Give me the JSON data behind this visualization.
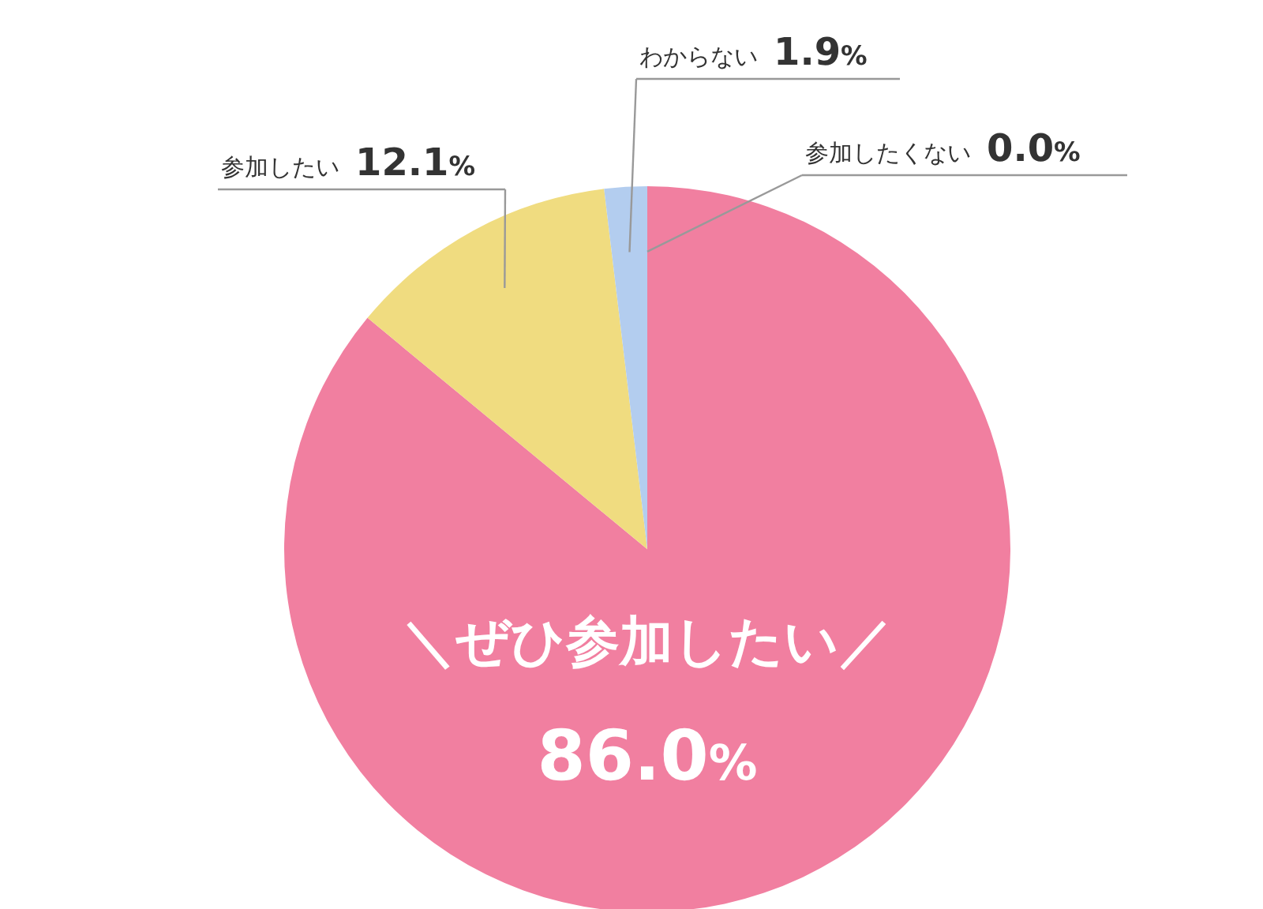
{
  "chart_data": {
    "type": "pie",
    "categories": [
      "＼ぜひ参加したい／",
      "参加したい",
      "わからない",
      "参加したくない"
    ],
    "values": [
      86.0,
      12.1,
      1.9,
      0.0
    ],
    "colors": [
      "#f17fa0",
      "#f0dc80",
      "#b3cdef",
      "#9ec7a8"
    ],
    "value_labels": [
      "86.0%",
      "12.1%",
      "1.9%",
      "0.0%"
    ],
    "legend": false
  }
}
